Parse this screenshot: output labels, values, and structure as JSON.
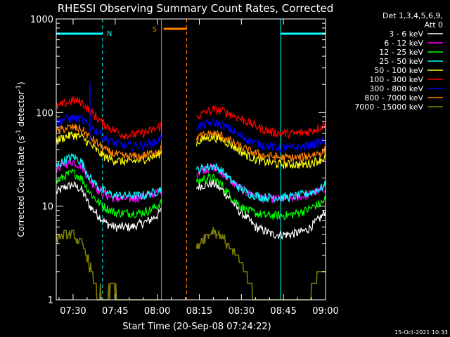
{
  "chart_data": {
    "type": "line",
    "title": "RHESSI Observing Summary Count Rates, Corrected",
    "xlabel": "Start Time (20-Sep-08 07:24:22)",
    "ylabel_main": "Corrected Count Rate (s",
    "ylabel_sup1": "-1",
    "ylabel_mid": " detector",
    "ylabel_sup2": "-1",
    "ylabel_end": ")",
    "y_scale": "log",
    "ylim": [
      1,
      1000
    ],
    "xlim_minutes": [
      0,
      96
    ],
    "grid": false,
    "x_ticks": [
      {
        "t": 6,
        "label": "07:30"
      },
      {
        "t": 21,
        "label": "07:45"
      },
      {
        "t": 36,
        "label": "08:00"
      },
      {
        "t": 51,
        "label": "08:15"
      },
      {
        "t": 66,
        "label": "08:30"
      },
      {
        "t": 81,
        "label": "08:45"
      },
      {
        "t": 96,
        "label": "09:00"
      }
    ],
    "y_ticks": [
      {
        "v": 1,
        "label": "1"
      },
      {
        "v": 10,
        "label": "10"
      },
      {
        "v": 100,
        "label": "100"
      },
      {
        "v": 1000,
        "label": "1000"
      }
    ],
    "legend": {
      "placement": "right",
      "header": [
        "Det 1,3,4,5,6,9,",
        "Att 0"
      ]
    },
    "series": [
      {
        "name": "3 - 6 keV",
        "color": "#ffffff",
        "points": [
          [
            0,
            14
          ],
          [
            3,
            16
          ],
          [
            6,
            17
          ],
          [
            9,
            15
          ],
          [
            12,
            10
          ],
          [
            15,
            8
          ],
          [
            18,
            6.5
          ],
          [
            21,
            6
          ],
          [
            24,
            6
          ],
          [
            27,
            6
          ],
          [
            30,
            6.5
          ],
          [
            33,
            7
          ],
          [
            36,
            8
          ],
          [
            37.5,
            9
          ],
          [
            50,
            16
          ],
          [
            53,
            17
          ],
          [
            56,
            17.5
          ],
          [
            59,
            15
          ],
          [
            62,
            12
          ],
          [
            65,
            9
          ],
          [
            68,
            7.5
          ],
          [
            71,
            6
          ],
          [
            74,
            5.5
          ],
          [
            77,
            5
          ],
          [
            80,
            5
          ],
          [
            83,
            5
          ],
          [
            86,
            5.2
          ],
          [
            89,
            5.5
          ],
          [
            92,
            6.5
          ],
          [
            95,
            8
          ],
          [
            96,
            9
          ]
        ]
      },
      {
        "name": "6 - 12 keV",
        "color": "#ff00ff",
        "points": [
          [
            0,
            25
          ],
          [
            3,
            28
          ],
          [
            6,
            30
          ],
          [
            9,
            27
          ],
          [
            12,
            19
          ],
          [
            15,
            15
          ],
          [
            18,
            13
          ],
          [
            21,
            12
          ],
          [
            24,
            12
          ],
          [
            27,
            12
          ],
          [
            30,
            12.5
          ],
          [
            33,
            13
          ],
          [
            36,
            14
          ],
          [
            37.5,
            15
          ],
          [
            50,
            23
          ],
          [
            53,
            25
          ],
          [
            56,
            26
          ],
          [
            59,
            23
          ],
          [
            62,
            19
          ],
          [
            65,
            16
          ],
          [
            68,
            14
          ],
          [
            71,
            13
          ],
          [
            74,
            12
          ],
          [
            77,
            12
          ],
          [
            80,
            12
          ],
          [
            83,
            12
          ],
          [
            86,
            12.5
          ],
          [
            89,
            13
          ],
          [
            92,
            14
          ],
          [
            95,
            15
          ],
          [
            96,
            16
          ]
        ]
      },
      {
        "name": "12 - 25 keV",
        "color": "#00ff00",
        "points": [
          [
            0,
            18
          ],
          [
            3,
            21
          ],
          [
            6,
            23
          ],
          [
            9,
            20
          ],
          [
            12,
            14
          ],
          [
            15,
            11
          ],
          [
            18,
            9.5
          ],
          [
            21,
            8.5
          ],
          [
            24,
            8.5
          ],
          [
            27,
            8.5
          ],
          [
            30,
            8.5
          ],
          [
            33,
            9
          ],
          [
            36,
            10
          ],
          [
            37.5,
            11
          ],
          [
            50,
            18
          ],
          [
            53,
            20
          ],
          [
            56,
            20
          ],
          [
            59,
            17
          ],
          [
            62,
            13
          ],
          [
            65,
            10.5
          ],
          [
            68,
            9
          ],
          [
            71,
            8.5
          ],
          [
            74,
            8
          ],
          [
            77,
            8
          ],
          [
            80,
            8
          ],
          [
            83,
            8
          ],
          [
            86,
            8.5
          ],
          [
            89,
            9
          ],
          [
            92,
            10
          ],
          [
            95,
            11
          ],
          [
            96,
            12
          ]
        ]
      },
      {
        "name": "25 - 50 keV",
        "color": "#00ffff",
        "points": [
          [
            0,
            27
          ],
          [
            3,
            31
          ],
          [
            6,
            34
          ],
          [
            9,
            30
          ],
          [
            12,
            20
          ],
          [
            15,
            16
          ],
          [
            18,
            14
          ],
          [
            21,
            13
          ],
          [
            24,
            13
          ],
          [
            27,
            13
          ],
          [
            30,
            13
          ],
          [
            33,
            13.5
          ],
          [
            36,
            14.5
          ],
          [
            37.5,
            15.5
          ],
          [
            50,
            24
          ],
          [
            53,
            26
          ],
          [
            56,
            27
          ],
          [
            59,
            24
          ],
          [
            62,
            19
          ],
          [
            65,
            16
          ],
          [
            68,
            14
          ],
          [
            71,
            13
          ],
          [
            74,
            12.5
          ],
          [
            77,
            12.5
          ],
          [
            80,
            12.5
          ],
          [
            83,
            12.5
          ],
          [
            86,
            13
          ],
          [
            89,
            13.5
          ],
          [
            92,
            14.5
          ],
          [
            95,
            16
          ],
          [
            96,
            17
          ]
        ]
      },
      {
        "name": "50 - 100 keV",
        "color": "#ffff00",
        "points": [
          [
            0,
            50
          ],
          [
            3,
            55
          ],
          [
            6,
            58
          ],
          [
            9,
            55
          ],
          [
            12,
            46
          ],
          [
            15,
            38
          ],
          [
            18,
            33
          ],
          [
            21,
            31
          ],
          [
            24,
            30
          ],
          [
            27,
            30
          ],
          [
            30,
            31
          ],
          [
            33,
            33
          ],
          [
            36,
            35
          ],
          [
            37.5,
            38
          ],
          [
            50,
            48
          ],
          [
            53,
            53
          ],
          [
            56,
            55
          ],
          [
            59,
            52
          ],
          [
            62,
            46
          ],
          [
            65,
            40
          ],
          [
            68,
            35
          ],
          [
            71,
            32
          ],
          [
            74,
            30
          ],
          [
            77,
            29
          ],
          [
            80,
            28
          ],
          [
            83,
            28
          ],
          [
            86,
            28
          ],
          [
            89,
            28
          ],
          [
            92,
            30
          ],
          [
            95,
            32
          ],
          [
            96,
            34
          ]
        ]
      },
      {
        "name": "100 - 300 keV",
        "color": "#ff0000",
        "points": [
          [
            0,
            115
          ],
          [
            3,
            125
          ],
          [
            6,
            135
          ],
          [
            9,
            130
          ],
          [
            12,
            105
          ],
          [
            15,
            85
          ],
          [
            18,
            72
          ],
          [
            21,
            64
          ],
          [
            24,
            58
          ],
          [
            27,
            58
          ],
          [
            30,
            60
          ],
          [
            33,
            63
          ],
          [
            36,
            68
          ],
          [
            37.5,
            75
          ],
          [
            50,
            90
          ],
          [
            53,
            100
          ],
          [
            56,
            108
          ],
          [
            59,
            105
          ],
          [
            62,
            97
          ],
          [
            65,
            88
          ],
          [
            68,
            80
          ],
          [
            71,
            72
          ],
          [
            74,
            66
          ],
          [
            77,
            62
          ],
          [
            80,
            60
          ],
          [
            83,
            60
          ],
          [
            86,
            60
          ],
          [
            89,
            62
          ],
          [
            92,
            66
          ],
          [
            95,
            72
          ],
          [
            96,
            78
          ]
        ]
      },
      {
        "name": "300 - 800 keV",
        "color": "#0000ff",
        "points": [
          [
            0,
            78
          ],
          [
            3,
            85
          ],
          [
            6,
            88
          ],
          [
            9,
            84
          ],
          [
            12,
            72
          ],
          [
            15,
            62
          ],
          [
            18,
            52
          ],
          [
            21,
            47
          ],
          [
            24,
            44
          ],
          [
            27,
            44
          ],
          [
            30,
            45
          ],
          [
            33,
            46
          ],
          [
            36,
            50
          ],
          [
            37.5,
            53
          ],
          [
            50,
            70
          ],
          [
            53,
            75
          ],
          [
            56,
            78
          ],
          [
            59,
            74
          ],
          [
            62,
            66
          ],
          [
            65,
            58
          ],
          [
            68,
            52
          ],
          [
            71,
            48
          ],
          [
            74,
            45
          ],
          [
            77,
            43
          ],
          [
            80,
            42
          ],
          [
            83,
            42
          ],
          [
            86,
            42
          ],
          [
            89,
            44
          ],
          [
            92,
            46
          ],
          [
            95,
            50
          ],
          [
            96,
            52
          ]
        ]
      },
      {
        "name": "800 - 7000 keV",
        "color": "#ff8000",
        "points": [
          [
            0,
            62
          ],
          [
            3,
            68
          ],
          [
            6,
            70
          ],
          [
            9,
            66
          ],
          [
            12,
            55
          ],
          [
            15,
            46
          ],
          [
            18,
            39
          ],
          [
            21,
            36
          ],
          [
            24,
            34
          ],
          [
            27,
            34
          ],
          [
            30,
            34
          ],
          [
            33,
            36
          ],
          [
            36,
            39
          ],
          [
            37.5,
            42
          ],
          [
            50,
            54
          ],
          [
            53,
            58
          ],
          [
            56,
            60
          ],
          [
            59,
            57
          ],
          [
            62,
            50
          ],
          [
            65,
            44
          ],
          [
            68,
            40
          ],
          [
            71,
            37
          ],
          [
            74,
            35
          ],
          [
            77,
            34
          ],
          [
            80,
            33
          ],
          [
            83,
            33
          ],
          [
            86,
            33
          ],
          [
            89,
            34
          ],
          [
            92,
            36
          ],
          [
            95,
            38
          ],
          [
            96,
            40
          ]
        ]
      },
      {
        "name": "7000 - 15000 keV",
        "color": "#808000",
        "points": [
          [
            0,
            4.5
          ],
          [
            3,
            5
          ],
          [
            6,
            5
          ],
          [
            9,
            4
          ],
          [
            11,
            3
          ],
          [
            12.5,
            2
          ],
          [
            14,
            1.3
          ],
          [
            18,
            1
          ],
          [
            20,
            1.5
          ],
          [
            22,
            1
          ],
          [
            36,
            1
          ],
          [
            37.5,
            1
          ],
          [
            50,
            3.5
          ],
          [
            52,
            4.5
          ],
          [
            54,
            5
          ],
          [
            56,
            5.5
          ],
          [
            58,
            5
          ],
          [
            60,
            4.5
          ],
          [
            62,
            3.5
          ],
          [
            64,
            3
          ],
          [
            66,
            2.5
          ],
          [
            68,
            1.8
          ],
          [
            70,
            1.2
          ],
          [
            72,
            1
          ],
          [
            90,
            1
          ],
          [
            92,
            1.5
          ],
          [
            94,
            2
          ],
          [
            96,
            2
          ]
        ]
      }
    ],
    "spike": {
      "t": 12,
      "v": 210
    },
    "spike_color": "#0000ff",
    "gaps": [
      [
        37.5,
        50
      ]
    ],
    "saa": {
      "label": "S",
      "start": 37.5,
      "end": 46.5,
      "color": "#ff8000"
    },
    "nights": [
      {
        "label": "N",
        "start": 0,
        "end": 16.5
      },
      {
        "label": "",
        "start": 80,
        "end": 96
      }
    ],
    "night_color": "#00ffff",
    "footer": "15-Oct-2021 10:33"
  }
}
